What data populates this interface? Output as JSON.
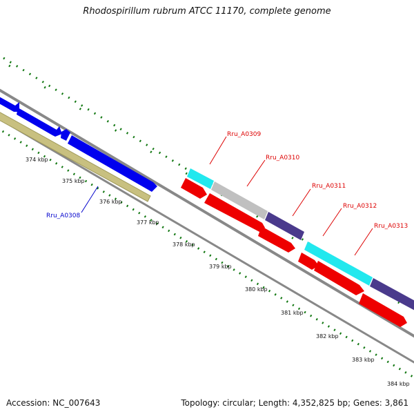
{
  "title": "Rhodospirillum rubrum ATCC 11170, complete genome",
  "footer": {
    "accession": "Accession: NC_007643",
    "summary": "Topology: circular; Length: 4,352,825 bp; Genes: 3,861"
  },
  "ruler": {
    "labels": [
      "374 kbp",
      "375 kbp",
      "376 kbp",
      "377 kbp",
      "378 kbp",
      "379 kbp",
      "380 kbp",
      "381 kbp",
      "382 kbp",
      "383 kbp",
      "384 kbp"
    ]
  },
  "gene_labels": [
    {
      "name": "Rru_A0308",
      "color": "#0000cc"
    },
    {
      "name": "Rru_A0309",
      "color": "#dd0000"
    },
    {
      "name": "Rru_A0310",
      "color": "#dd0000"
    },
    {
      "name": "Rru_A0311",
      "color": "#dd0000"
    },
    {
      "name": "Rru_A0312",
      "color": "#dd0000"
    },
    {
      "name": "Rru_A0313",
      "color": "#dd0000"
    }
  ],
  "colors": {
    "forward_cds": "#0000ee",
    "reverse_cds": "#ee0000",
    "feature_olive": "#c8c080",
    "feature_cyan": "#22e8ee",
    "feature_grey": "#c0c0c0",
    "feature_navy": "#4a3a8c",
    "backbone": "#888888",
    "tick": "#117711"
  }
}
